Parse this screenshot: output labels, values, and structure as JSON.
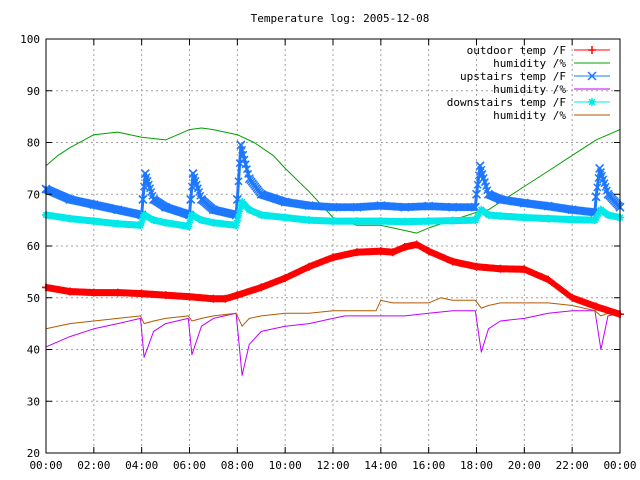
{
  "chart_data": {
    "type": "line",
    "title": "Temperature log: 2005-12-08",
    "xlabel": "",
    "ylabel": "",
    "xlim": [
      0,
      24
    ],
    "ylim": [
      20,
      100
    ],
    "grid": true,
    "legend_position": "top-right",
    "x_tick_labels": [
      "00:00",
      "02:00",
      "04:00",
      "06:00",
      "08:00",
      "10:00",
      "12:00",
      "14:00",
      "16:00",
      "18:00",
      "20:00",
      "22:00",
      "00:00"
    ],
    "y_tick_labels": [
      "20",
      "30",
      "40",
      "50",
      "60",
      "70",
      "80",
      "90",
      "100"
    ],
    "series": [
      {
        "name": "outdoor temp /F",
        "color": "#ff0000",
        "marker": "plus",
        "x": [
          0,
          1,
          2,
          3,
          4,
          5,
          6,
          7,
          7.5,
          8,
          9,
          10,
          11,
          12,
          13,
          14,
          14.5,
          15,
          15.5,
          16,
          17,
          18,
          19,
          20,
          21,
          22,
          23,
          24
        ],
        "values": [
          52,
          51.2,
          51,
          51,
          50.8,
          50.5,
          50.2,
          49.8,
          49.8,
          50.5,
          52,
          53.8,
          56,
          57.8,
          58.8,
          59,
          58.8,
          59.8,
          60.3,
          59,
          57,
          56,
          55.6,
          55.5,
          53.5,
          50,
          48.3,
          46.8
        ]
      },
      {
        "name": "humidity /%",
        "color": "#00a000",
        "marker": "none",
        "x": [
          0,
          0.5,
          1,
          2,
          3,
          4,
          5,
          6,
          6.5,
          7,
          8,
          8.7,
          9.5,
          10,
          11,
          12,
          13,
          14,
          14.5,
          15,
          15.5,
          16,
          17,
          18,
          18.5,
          19,
          20,
          21,
          22,
          23,
          24
        ],
        "values": [
          75.5,
          77.5,
          79,
          81.5,
          82,
          81,
          80.5,
          82.5,
          82.8,
          82.5,
          81.5,
          80,
          77.5,
          75,
          70.5,
          65.5,
          64,
          64,
          63.5,
          63,
          62.5,
          63.5,
          65,
          66.5,
          67,
          68.5,
          71.5,
          74.5,
          77.5,
          80.5,
          82.5
        ]
      },
      {
        "name": "upstairs temp /F",
        "color": "#1e78ff",
        "marker": "x",
        "x": [
          0,
          1,
          2,
          3,
          4,
          4.05,
          4.15,
          4.5,
          5,
          6,
          6.05,
          6.15,
          6.5,
          7,
          7.95,
          8,
          8.15,
          8.5,
          9,
          10,
          11,
          12,
          13,
          14,
          15,
          16,
          17,
          17.95,
          18,
          18.15,
          18.5,
          19,
          20,
          21,
          22,
          22.95,
          23,
          23.15,
          23.5,
          24
        ],
        "values": [
          71,
          69,
          68,
          67,
          66,
          69,
          74,
          69,
          67.5,
          66,
          69,
          74,
          69,
          67,
          66,
          69,
          79.5,
          73,
          70,
          68.5,
          67.8,
          67.5,
          67.5,
          67.8,
          67.5,
          67.7,
          67.5,
          67.5,
          70,
          75.5,
          70,
          69,
          68.3,
          67.7,
          67,
          66.5,
          69.5,
          75,
          70,
          67.5
        ]
      },
      {
        "name": "humidity /%",
        "color": "#c000ff",
        "marker": "none",
        "x": [
          0,
          1,
          2,
          3,
          3.95,
          4.1,
          4.5,
          5,
          5.95,
          6.1,
          6.5,
          7,
          7.95,
          8.2,
          8.5,
          9,
          10,
          11,
          12,
          12.5,
          13,
          14,
          15,
          16,
          17,
          17.95,
          18.2,
          18.5,
          19,
          20,
          21,
          22,
          22.95,
          23.2,
          23.5,
          24
        ],
        "values": [
          40.5,
          42.5,
          44,
          45,
          46,
          38.5,
          43.5,
          45,
          46,
          39,
          44.5,
          46,
          47,
          35,
          41,
          43.5,
          44.5,
          45,
          46,
          46.5,
          46.5,
          46.5,
          46.5,
          47,
          47.5,
          47.5,
          39.5,
          44,
          45.5,
          46,
          47,
          47.5,
          47.5,
          40,
          46.5,
          47
        ]
      },
      {
        "name": "downstairs temp /F",
        "color": "#00e8e8",
        "marker": "star",
        "x": [
          0,
          1,
          2,
          3,
          3.95,
          4.1,
          4.5,
          5,
          5.95,
          6.1,
          6.5,
          7,
          7.95,
          8.2,
          8.5,
          9,
          10,
          11,
          12,
          13,
          14,
          15,
          16,
          17,
          17.95,
          18.2,
          18.5,
          19,
          20,
          21,
          22,
          22.95,
          23.2,
          23.5,
          24
        ],
        "values": [
          66,
          65.3,
          64.8,
          64.3,
          64,
          66,
          65,
          64.5,
          63.8,
          66,
          65,
          64.5,
          64,
          68.5,
          67,
          66,
          65.5,
          65,
          64.8,
          64.8,
          64.8,
          64.7,
          64.8,
          64.9,
          65,
          67,
          66,
          65.8,
          65.5,
          65.3,
          65.1,
          65,
          67,
          66,
          65.5
        ]
      },
      {
        "name": "humidity /%",
        "color": "#b35a00",
        "marker": "none",
        "x": [
          0,
          1,
          2,
          3,
          3.95,
          4.1,
          4.5,
          5,
          5.95,
          6.1,
          6.5,
          7,
          7.95,
          8.2,
          8.5,
          9,
          10,
          11,
          12,
          13,
          13.8,
          14,
          14.5,
          15,
          16,
          16.5,
          17,
          17.95,
          18.2,
          18.5,
          19,
          20,
          21,
          22,
          22.95,
          23.2,
          23.5,
          24
        ],
        "values": [
          44,
          45,
          45.5,
          46,
          46.5,
          45,
          45.5,
          46,
          46.5,
          45.5,
          46,
          46.5,
          47,
          44.5,
          46,
          46.5,
          47,
          47,
          47.5,
          47.5,
          47.5,
          49.5,
          49,
          49,
          49,
          50,
          49.5,
          49.5,
          48,
          48.5,
          49,
          49,
          49,
          48.5,
          47.5,
          46.5,
          47,
          47
        ]
      }
    ]
  }
}
